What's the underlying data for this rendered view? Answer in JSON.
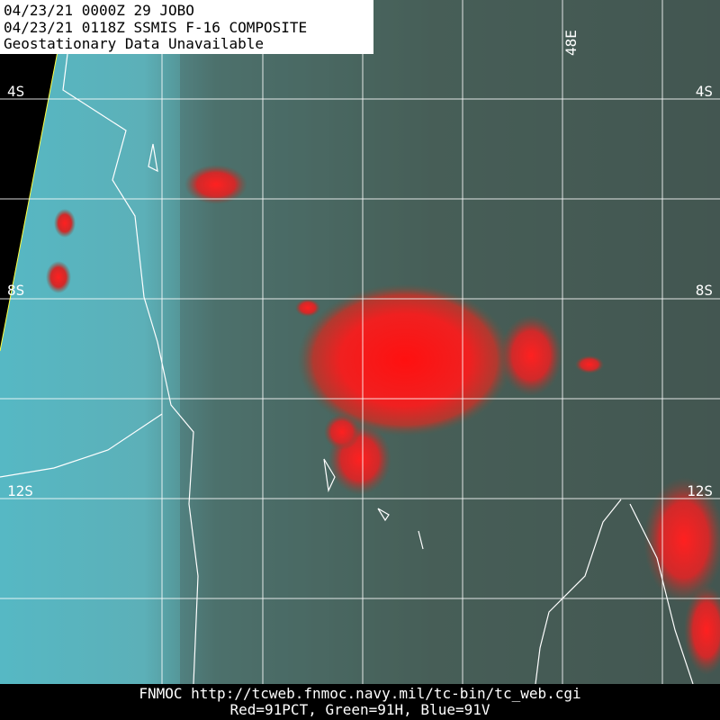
{
  "header": {
    "lines": [
      "04/23/21 0000Z  29 JOBO",
      "04/23/21 0118Z  SSMIS F-16 COMPOSITE",
      "Geostationary Data Unavailable"
    ]
  },
  "grid_labels": {
    "left": [
      "4S",
      "8S",
      "12S"
    ],
    "right": [
      "4S",
      "8S",
      "12S"
    ],
    "top": [
      "48E"
    ]
  },
  "footer": {
    "lines": [
      "FNMOC  http://tcweb.fnmoc.navy.mil/tc-bin/tc_web.cgi",
      "Red=91PCT, Green=91H, Blue=91V"
    ]
  }
}
